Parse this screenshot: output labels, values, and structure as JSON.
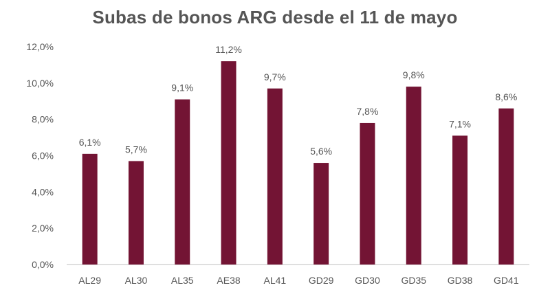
{
  "chart_data": {
    "type": "bar",
    "title": "Subas de bonos ARG desde el 11 de mayo",
    "categories": [
      "AL29",
      "AL30",
      "AL35",
      "AE38",
      "AL41",
      "GD29",
      "GD30",
      "GD35",
      "GD38",
      "GD41"
    ],
    "values": [
      6.1,
      5.7,
      9.1,
      11.2,
      9.7,
      5.6,
      7.8,
      9.8,
      7.1,
      8.6
    ],
    "data_labels": [
      "6,1%",
      "5,7%",
      "9,1%",
      "11,2%",
      "9,7%",
      "5,6%",
      "7,8%",
      "9,8%",
      "7,1%",
      "8,6%"
    ],
    "yticks": [
      0,
      2,
      4,
      6,
      8,
      10,
      12
    ],
    "ytick_labels": [
      "0,0%",
      "2,0%",
      "4,0%",
      "6,0%",
      "8,0%",
      "10,0%",
      "12,0%"
    ],
    "ylim": [
      0,
      12
    ],
    "xlabel": "",
    "ylabel": "",
    "grid": false,
    "legend": "none",
    "colors": {
      "bar": "#731434",
      "axis": "#bfbfbf",
      "text": "#555555",
      "title": "#555555"
    }
  }
}
